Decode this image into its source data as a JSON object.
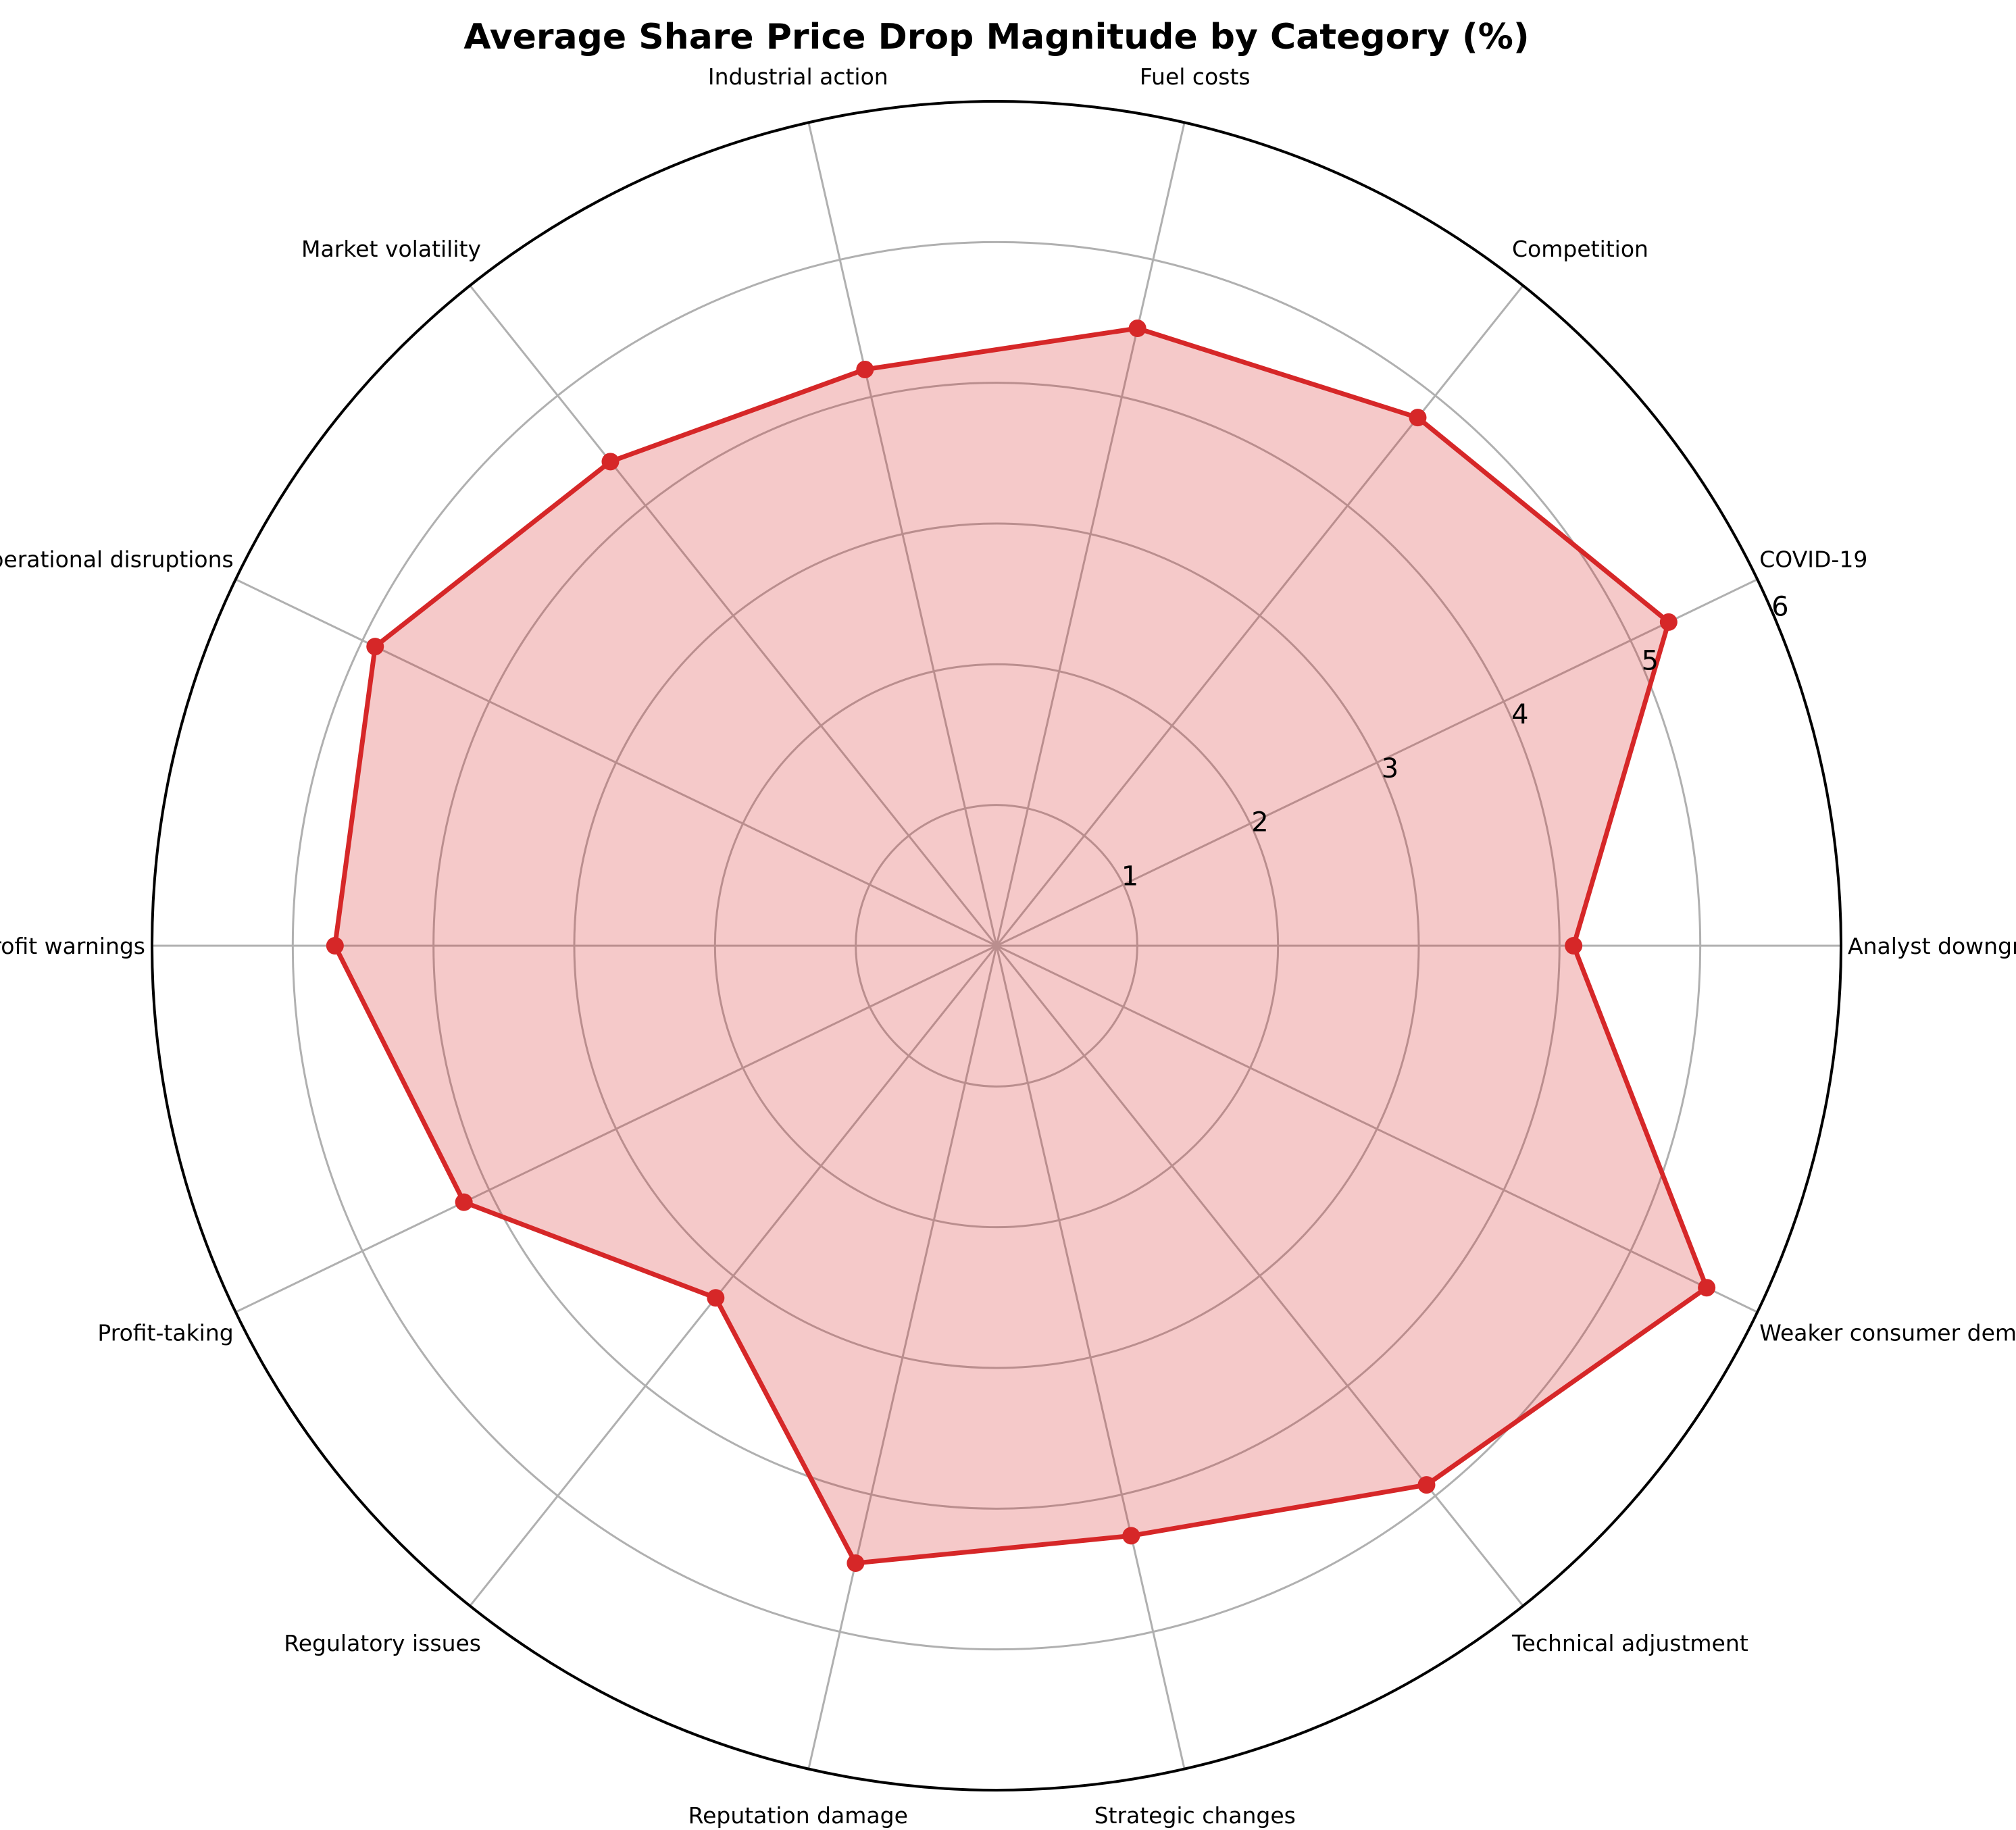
{
  "chart_data": {
    "type": "radar",
    "title": "Average Share Price Drop Magnitude by Category (%)",
    "categories": [
      "Analyst downgrades",
      "COVID-19",
      "Competition",
      "Fuel costs",
      "Industrial action",
      "Market volatility",
      "Operational disruptions",
      "Profit warnings",
      "Profit-taking",
      "Regulatory issues",
      "Reputation damage",
      "Strategic changes",
      "Technical adjustment",
      "Weaker consumer demand"
    ],
    "values": [
      4.1,
      5.3,
      4.8,
      4.5,
      4.2,
      4.4,
      4.9,
      4.7,
      4.2,
      3.2,
      4.5,
      4.3,
      4.9,
      5.6
    ],
    "rlim": [
      0,
      6
    ],
    "rticks": [
      "1",
      "2",
      "3",
      "4",
      "5",
      "6"
    ],
    "grid": true,
    "colors": {
      "line": "#d62728",
      "fill": "#d62728",
      "grid": "#b0b0b0",
      "frame": "#000000"
    }
  }
}
